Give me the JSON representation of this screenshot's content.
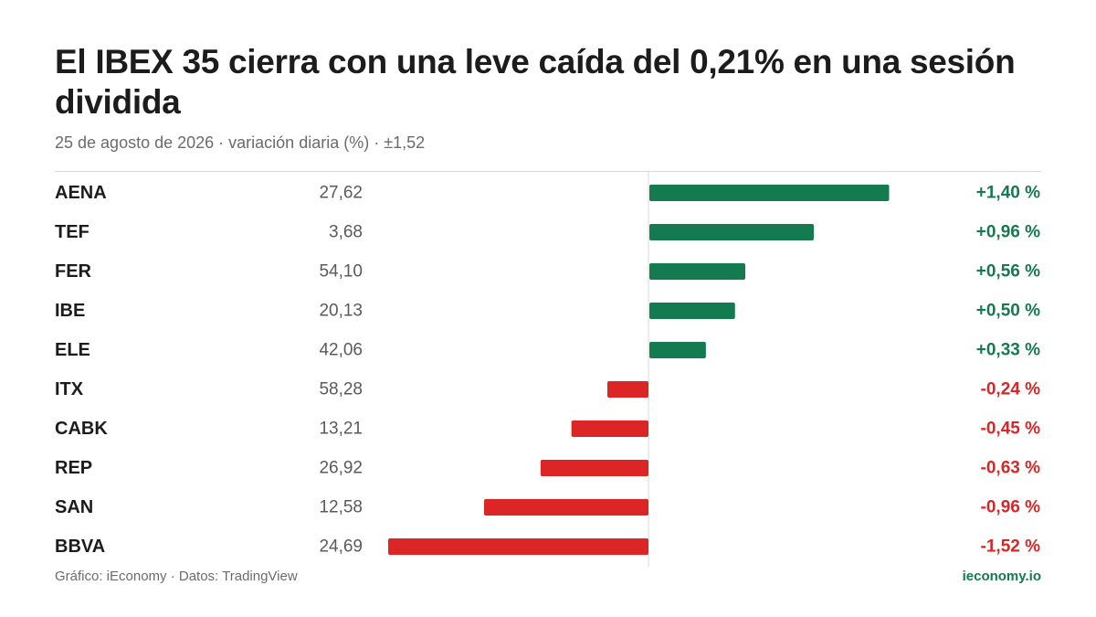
{
  "header": {
    "title": "El IBEX 35 cierra con una leve caída del 0,21% en una sesión dividida",
    "subtitle": "25 de agosto de 2026 · variación diaria (%) · ±1,52"
  },
  "footer": {
    "source": "Gráfico: iEconomy · Datos: TradingView",
    "brand": "ieconomy.io"
  },
  "colors": {
    "positive": "#147a4f",
    "negative": "#dc2626",
    "brand": "#147a4f",
    "axis": "#d9d9d9",
    "ticker": "#1c1c1c",
    "price": "#5a5a5a"
  },
  "chart_data": {
    "type": "bar",
    "orientation": "horizontal",
    "value_unit": "%",
    "xlim": [
      -1.52,
      1.52
    ],
    "rows": [
      {
        "ticker": "AENA",
        "price": "27,62",
        "value": 1.4,
        "label": "+1,40 %"
      },
      {
        "ticker": "TEF",
        "price": "3,68",
        "value": 0.96,
        "label": "+0,96 %"
      },
      {
        "ticker": "FER",
        "price": "54,10",
        "value": 0.56,
        "label": "+0,56 %"
      },
      {
        "ticker": "IBE",
        "price": "20,13",
        "value": 0.5,
        "label": "+0,50 %"
      },
      {
        "ticker": "ELE",
        "price": "42,06",
        "value": 0.33,
        "label": "+0,33 %"
      },
      {
        "ticker": "ITX",
        "price": "58,28",
        "value": -0.24,
        "label": "-0,24 %"
      },
      {
        "ticker": "CABK",
        "price": "13,21",
        "value": -0.45,
        "label": "-0,45 %"
      },
      {
        "ticker": "REP",
        "price": "26,92",
        "value": -0.63,
        "label": "-0,63 %"
      },
      {
        "ticker": "SAN",
        "price": "12,58",
        "value": -0.96,
        "label": "-0,96 %"
      },
      {
        "ticker": "BBVA",
        "price": "24,69",
        "value": -1.52,
        "label": "-1,52 %"
      }
    ]
  }
}
